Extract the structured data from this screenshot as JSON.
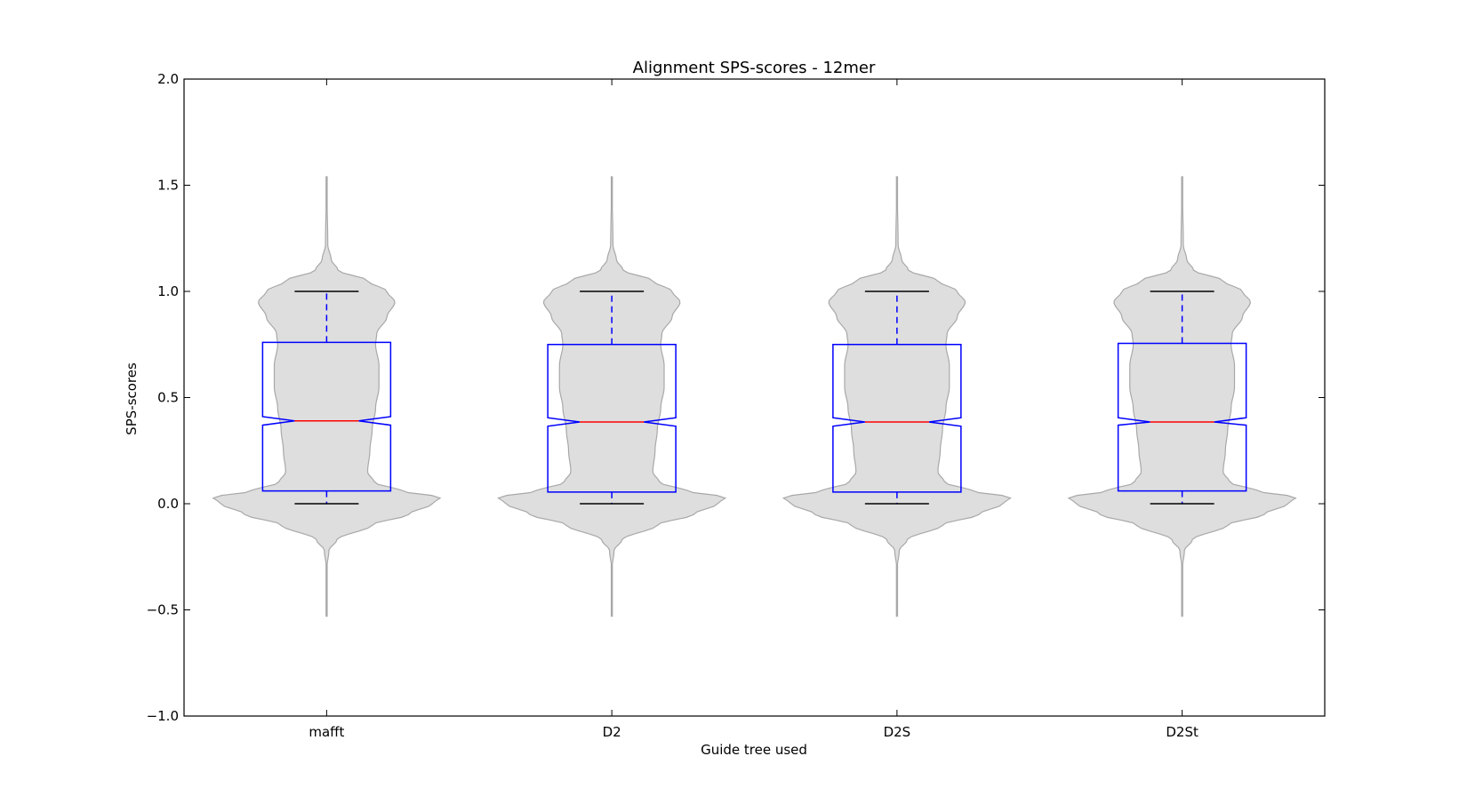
{
  "chart_data": {
    "type": "violin",
    "title": "Alignment SPS-scores - 12mer",
    "xlabel": "Guide tree used",
    "ylabel": "SPS-scores",
    "ylim": [
      -1.0,
      2.0
    ],
    "yticks": [
      -1.0,
      -0.5,
      0.0,
      0.5,
      1.0,
      1.5,
      2.0
    ],
    "ytick_labels": [
      "−1.0",
      "−0.5",
      "0.0",
      "0.5",
      "1.0",
      "1.5",
      "2.0"
    ],
    "categories": [
      "mafft",
      "D2",
      "D2S",
      "D2St"
    ],
    "grid": false,
    "legend": "none",
    "violins": [
      {
        "name": "mafft",
        "kde_min": -0.53,
        "kde_max": 1.54,
        "box": {
          "q1": 0.06,
          "median": 0.39,
          "q3": 0.76,
          "notch_low": 0.37,
          "notch_high": 0.41,
          "whisker_low": 0.0,
          "whisker_high": 1.0
        }
      },
      {
        "name": "D2",
        "kde_min": -0.53,
        "kde_max": 1.54,
        "box": {
          "q1": 0.055,
          "median": 0.385,
          "q3": 0.75,
          "notch_low": 0.365,
          "notch_high": 0.405,
          "whisker_low": 0.0,
          "whisker_high": 1.0
        }
      },
      {
        "name": "D2S",
        "kde_min": -0.53,
        "kde_max": 1.54,
        "box": {
          "q1": 0.055,
          "median": 0.385,
          "q3": 0.75,
          "notch_low": 0.365,
          "notch_high": 0.405,
          "whisker_low": 0.0,
          "whisker_high": 1.0
        }
      },
      {
        "name": "D2St",
        "kde_min": -0.53,
        "kde_max": 1.54,
        "box": {
          "q1": 0.06,
          "median": 0.385,
          "q3": 0.755,
          "notch_low": 0.37,
          "notch_high": 0.405,
          "whisker_low": 0.0,
          "whisker_high": 1.0
        }
      }
    ],
    "density_profile": [
      [
        -0.53,
        0.0
      ],
      [
        -0.3,
        0.003
      ],
      [
        -0.22,
        0.02
      ],
      [
        -0.17,
        0.09
      ],
      [
        -0.1,
        0.4
      ],
      [
        -0.05,
        0.72
      ],
      [
        0.0,
        0.93
      ],
      [
        0.03,
        1.0
      ],
      [
        0.06,
        0.66
      ],
      [
        0.1,
        0.42
      ],
      [
        0.15,
        0.36
      ],
      [
        0.25,
        0.38
      ],
      [
        0.35,
        0.4
      ],
      [
        0.45,
        0.43
      ],
      [
        0.55,
        0.46
      ],
      [
        0.65,
        0.46
      ],
      [
        0.75,
        0.43
      ],
      [
        0.8,
        0.44
      ],
      [
        0.88,
        0.53
      ],
      [
        0.95,
        0.6
      ],
      [
        1.0,
        0.53
      ],
      [
        1.05,
        0.36
      ],
      [
        1.1,
        0.1
      ],
      [
        1.15,
        0.04
      ],
      [
        1.22,
        0.01
      ],
      [
        1.54,
        0.0
      ]
    ],
    "colors": {
      "violin_fill": "#dedede",
      "violin_edge": "#a8a8a8",
      "box": "#0000ff",
      "median": "#ff0000",
      "whisker_cap": "#000000"
    }
  }
}
